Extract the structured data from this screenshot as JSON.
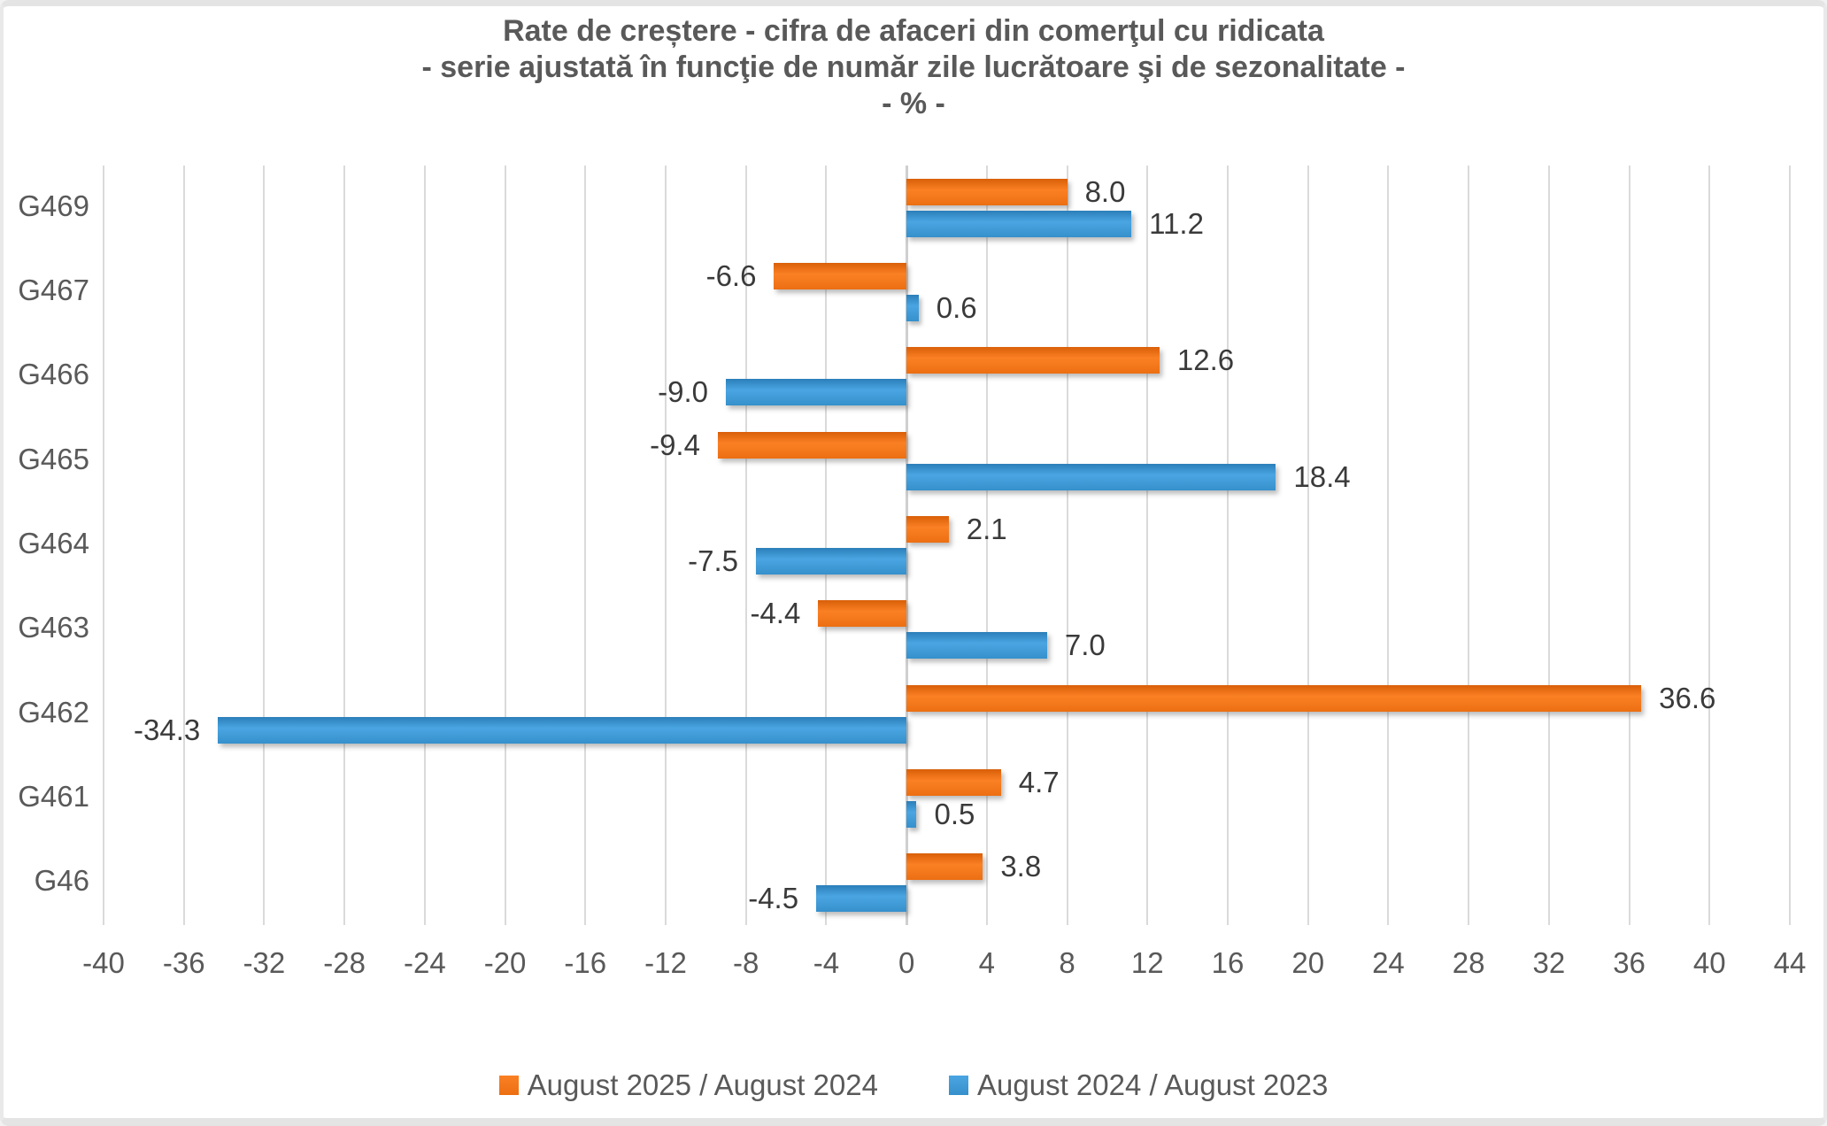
{
  "chart_data": {
    "type": "bar",
    "orientation": "horizontal",
    "title": "Rate de creștere - cifra de afaceri din comerţul cu ridicata",
    "subtitle": "- serie ajustată în funcţie de număr zile lucrătoare şi de sezonalitate -",
    "unit_line": "- % -",
    "categories": [
      "G469",
      "G467",
      "G466",
      "G465",
      "G464",
      "G463",
      "G462",
      "G461",
      "G46"
    ],
    "series": [
      {
        "name": "August 2025 / August 2024",
        "color": "#ec6f12",
        "color_light": "#fb8024",
        "color_dark": "#d95f08",
        "values": [
          8.0,
          -6.6,
          12.6,
          -9.4,
          2.1,
          -4.4,
          36.6,
          4.7,
          3.8
        ]
      },
      {
        "name": "August 2024 / August 2023",
        "color": "#3590cb",
        "color_light": "#4aa5e2",
        "color_dark": "#2b7fb9",
        "values": [
          11.2,
          0.6,
          -9.0,
          18.4,
          -7.5,
          7.0,
          -34.3,
          0.5,
          -4.5
        ]
      }
    ],
    "xlim": [
      -40,
      44
    ],
    "x_tick_step": 4,
    "x_ticks": [
      -40,
      -36,
      -32,
      -28,
      -24,
      -20,
      -16,
      -12,
      -8,
      -4,
      0,
      4,
      8,
      12,
      16,
      20,
      24,
      28,
      32,
      36,
      40,
      44
    ],
    "grid": true,
    "value_label_decimals": 1,
    "legend_position": "bottom",
    "colors": {
      "gridline": "#dadada",
      "zero_axis": "#cfcfcf",
      "title_text": "#595959",
      "axis_text": "#595959",
      "value_text": "#3a3a3a",
      "background": "#ffffff"
    }
  }
}
